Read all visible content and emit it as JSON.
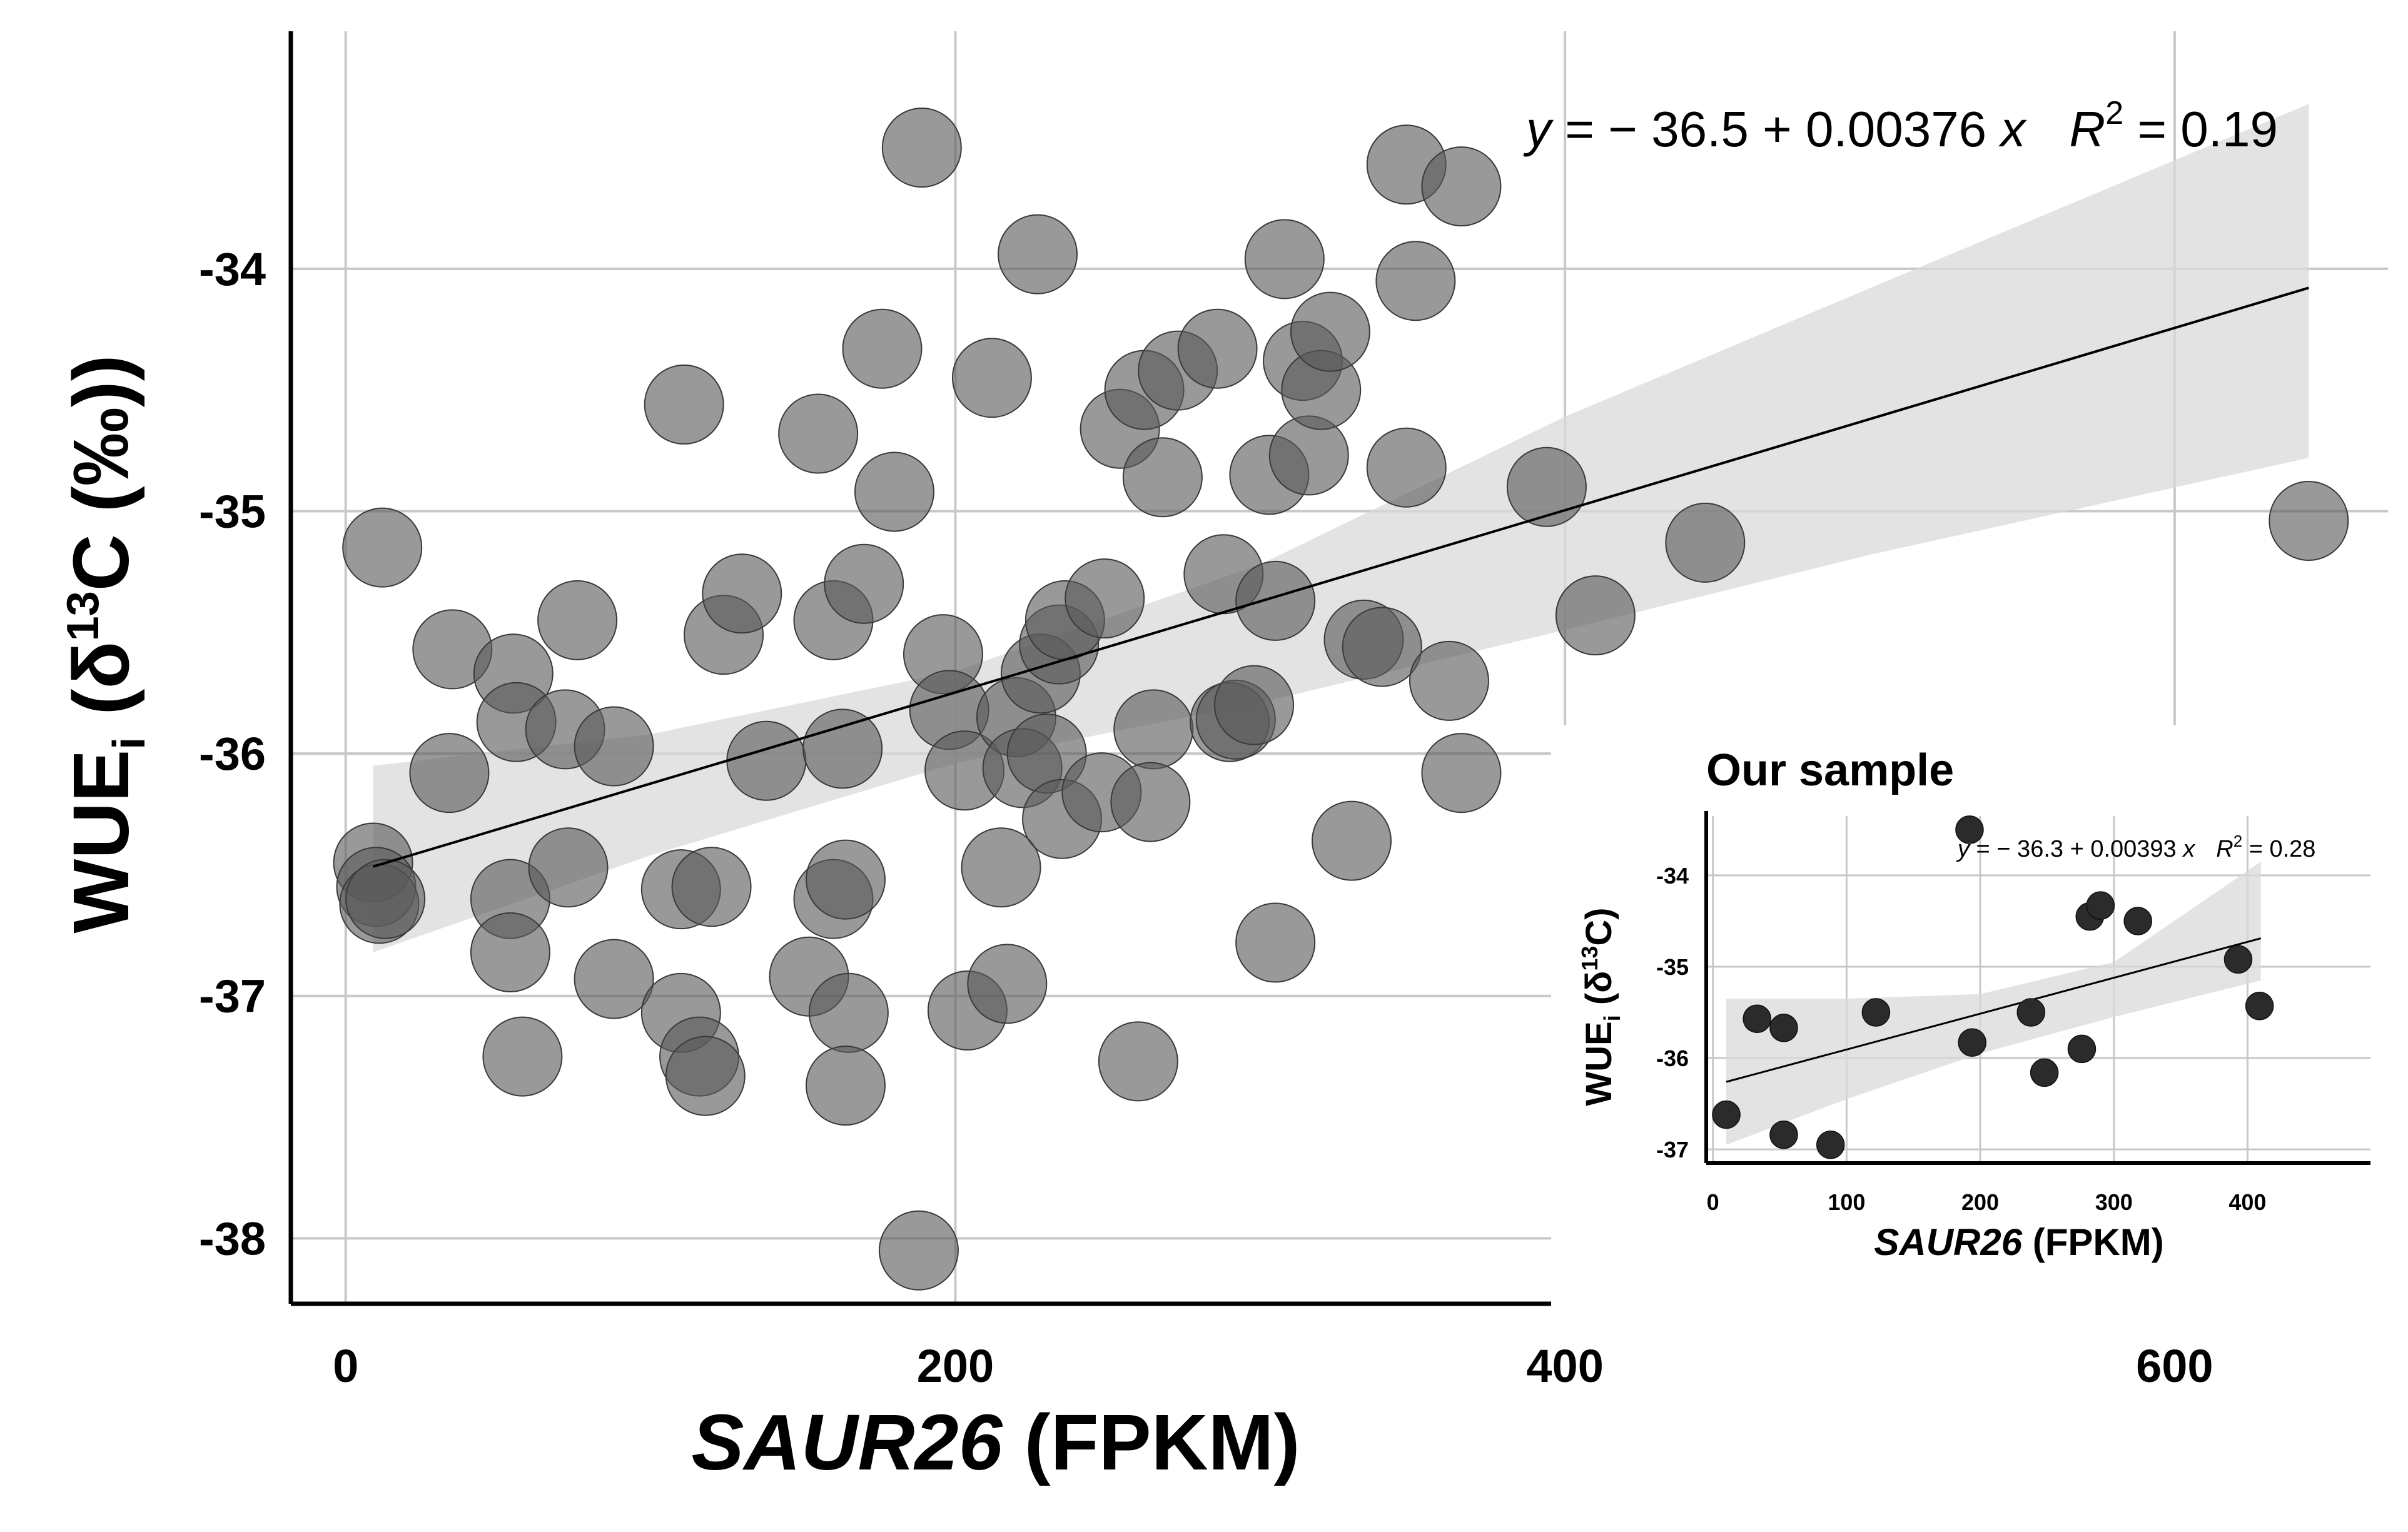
{
  "chart_data": [
    {
      "type": "scatter",
      "panel": "main",
      "xlabel": {
        "italic": "SAUR26",
        "normal": " (FPKM)"
      },
      "ylabel": {
        "main": "WUE",
        "sub": "i",
        "rest": " (δ",
        "sup": "13",
        "end": "C (‰))"
      },
      "equation": {
        "y": "y",
        "body": " = − 36.5 + 0.00376 ",
        "x": "x",
        "r": "R",
        "r_sup": "2",
        "r_body": " = 0.19"
      },
      "xlim": [
        -18,
        670
      ],
      "ylim": [
        -38.27,
        -33.02
      ],
      "xticks": [
        0,
        200,
        400,
        600
      ],
      "xtick_labels": [
        "0",
        "200",
        "400",
        "600"
      ],
      "yticks": [
        -38,
        -37,
        -36,
        -35,
        -34
      ],
      "ytick_labels": [
        "-38",
        "-37",
        "-36",
        "-35",
        "-34"
      ],
      "grid": true,
      "point_color": "#5a5a5a",
      "fit": {
        "intercept": -36.5,
        "slope": 0.00376,
        "x_range": [
          9,
          644
        ]
      },
      "confidence_band": {
        "x": [
          9,
          100,
          200,
          300,
          400,
          500,
          644
        ],
        "lower": [
          -36.82,
          -36.42,
          -36.04,
          -35.79,
          -35.49,
          -35.18,
          -34.78
        ],
        "upper": [
          -36.05,
          -35.92,
          -35.66,
          -35.22,
          -34.61,
          -34.08,
          -33.32
        ]
      },
      "points": [
        [
          12,
          -35.15
        ],
        [
          9,
          -36.45
        ],
        [
          10,
          -36.55
        ],
        [
          11,
          -36.62
        ],
        [
          13,
          -36.6
        ],
        [
          35,
          -35.57
        ],
        [
          34,
          -36.08
        ],
        [
          55,
          -35.67
        ],
        [
          56,
          -35.87
        ],
        [
          54,
          -36.6
        ],
        [
          54,
          -36.82
        ],
        [
          58,
          -37.25
        ],
        [
          72,
          -35.9
        ],
        [
          76,
          -35.45
        ],
        [
          73,
          -36.47
        ],
        [
          88,
          -35.97
        ],
        [
          88,
          -36.93
        ],
        [
          110,
          -36.56
        ],
        [
          111,
          -34.56
        ],
        [
          110,
          -37.07
        ],
        [
          116,
          -37.25
        ],
        [
          118,
          -37.33
        ],
        [
          120,
          -36.55
        ],
        [
          124,
          -35.51
        ],
        [
          130,
          -35.34
        ],
        [
          138,
          -36.03
        ],
        [
          152,
          -36.92
        ],
        [
          155,
          -34.68
        ],
        [
          160,
          -35.45
        ],
        [
          160,
          -36.6
        ],
        [
          163,
          -35.98
        ],
        [
          164,
          -36.52
        ],
        [
          165,
          -37.07
        ],
        [
          164,
          -37.37
        ],
        [
          170,
          -35.3
        ],
        [
          176,
          -34.33
        ],
        [
          180,
          -34.92
        ],
        [
          188,
          -38.05
        ],
        [
          189,
          -33.5
        ],
        [
          196,
          -35.59
        ],
        [
          198,
          -35.82
        ],
        [
          203,
          -36.07
        ],
        [
          204,
          -37.06
        ],
        [
          212,
          -34.45
        ],
        [
          215,
          -36.47
        ],
        [
          217,
          -36.95
        ],
        [
          220,
          -35.85
        ],
        [
          222,
          -36.06
        ],
        [
          227,
          -33.94
        ],
        [
          228,
          -35.67
        ],
        [
          230,
          -36.0
        ],
        [
          234,
          -35.55
        ],
        [
          236,
          -35.45
        ],
        [
          235,
          -36.27
        ],
        [
          249,
          -35.36
        ],
        [
          248,
          -36.16
        ],
        [
          254,
          -34.66
        ],
        [
          262,
          -34.5
        ],
        [
          265,
          -35.9
        ],
        [
          264,
          -36.2
        ],
        [
          260,
          -37.27
        ],
        [
          268,
          -34.86
        ],
        [
          273,
          -34.42
        ],
        [
          286,
          -34.33
        ],
        [
          288,
          -35.26
        ],
        [
          290,
          -35.87
        ],
        [
          292,
          -35.86
        ],
        [
          298,
          -35.8
        ],
        [
          303,
          -34.85
        ],
        [
          305,
          -35.37
        ],
        [
          305,
          -36.78
        ],
        [
          308,
          -33.96
        ],
        [
          314,
          -34.38
        ],
        [
          316,
          -34.77
        ],
        [
          320,
          -34.5
        ],
        [
          323,
          -34.26
        ],
        [
          330,
          -36.36
        ],
        [
          334,
          -35.53
        ],
        [
          340,
          -35.56
        ],
        [
          348,
          -33.57
        ],
        [
          348,
          -34.82
        ],
        [
          351,
          -34.05
        ],
        [
          362,
          -35.7
        ],
        [
          366,
          -33.66
        ],
        [
          366,
          -36.08
        ],
        [
          394,
          -34.9
        ],
        [
          410,
          -35.43
        ],
        [
          446,
          -35.13
        ],
        [
          644,
          -35.04
        ]
      ],
      "large_points": []
    },
    {
      "type": "scatter",
      "panel": "inset",
      "title": "Our sample",
      "xlabel": {
        "italic": "SAUR26",
        "normal": " (FPKM)"
      },
      "ylabel": {
        "main": "WUE",
        "sub": "i",
        "rest": " (δ",
        "sup": "13",
        "end": "C)"
      },
      "equation": {
        "y": "y",
        "body": " = − 36.3 + 0.00393 ",
        "x": "x",
        "r": "R",
        "r_sup": "2",
        "r_body": " = 0.28"
      },
      "xlim": [
        -5,
        492
      ],
      "ylim": [
        -37.15,
        -33.35
      ],
      "xticks": [
        0,
        100,
        200,
        300,
        400
      ],
      "xtick_labels": [
        "0",
        "100",
        "200",
        "300",
        "400"
      ],
      "yticks": [
        -37,
        -36,
        -35,
        -34
      ],
      "ytick_labels": [
        "-37",
        "-36",
        "-35",
        "-34"
      ],
      "grid": true,
      "point_color": "#2b2b2b",
      "fit": {
        "intercept": -36.3,
        "slope": 0.00393,
        "x_range": [
          10,
          410
        ]
      },
      "confidence_band": {
        "x": [
          10,
          100,
          200,
          300,
          410
        ],
        "lower": [
          -36.95,
          -36.45,
          -35.95,
          -35.55,
          -35.15
        ],
        "upper": [
          -35.35,
          -35.35,
          -35.3,
          -34.95,
          -33.85
        ]
      },
      "points": [
        [
          10,
          -36.62
        ],
        [
          33,
          -35.57
        ],
        [
          53,
          -35.67
        ],
        [
          53,
          -36.84
        ],
        [
          88,
          -36.95
        ],
        [
          122,
          -35.5
        ],
        [
          192,
          -33.5
        ],
        [
          194,
          -35.83
        ],
        [
          238,
          -35.5
        ],
        [
          248,
          -36.16
        ],
        [
          276,
          -35.9
        ],
        [
          282,
          -34.45
        ],
        [
          290,
          -34.33
        ],
        [
          318,
          -34.5
        ],
        [
          393,
          -34.92
        ],
        [
          409,
          -35.43
        ]
      ]
    }
  ]
}
